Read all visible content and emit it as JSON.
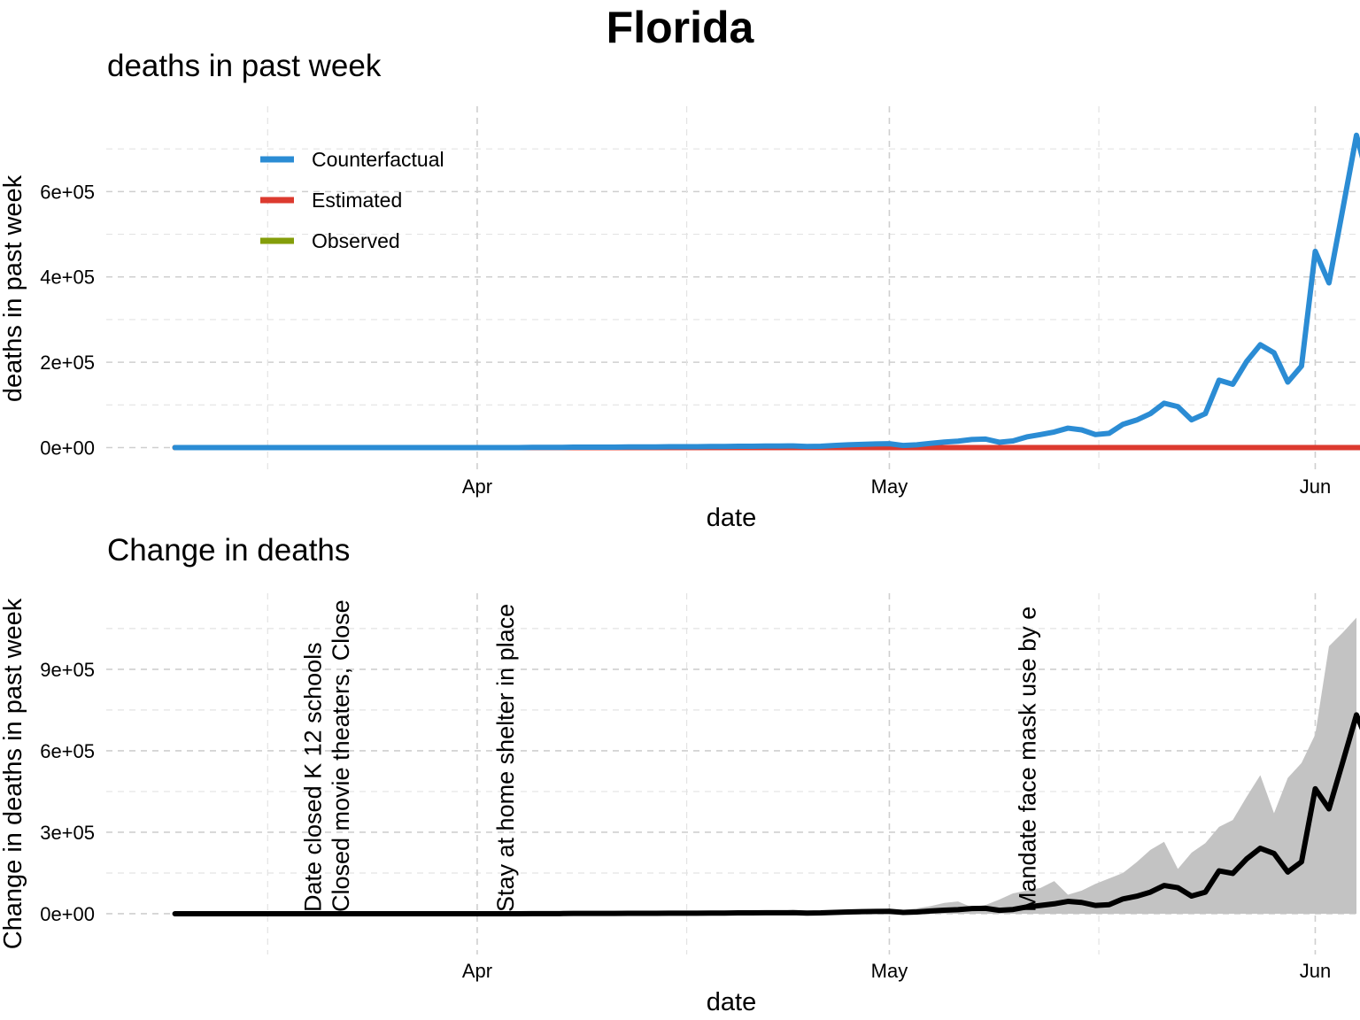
{
  "title": "Florida",
  "colors": {
    "counterfactual": "#2b8cd4",
    "estimated": "#dc3a2f",
    "observed": "#849e0a",
    "change_line": "#000000",
    "band": "#c3c3c3",
    "grid": "#cfcfcf"
  },
  "chart_data": [
    {
      "type": "line",
      "title": "deaths in past week",
      "xlabel": "date",
      "ylabel": "deaths in past week",
      "x_axis": {
        "type": "date",
        "range": [
          "2020-03-05",
          "2020-06-04"
        ],
        "ticks": [
          "2020-04-01",
          "2020-05-01",
          "2020-06-01"
        ],
        "tick_labels": [
          "Apr",
          "May",
          "Jun"
        ]
      },
      "y_axis": {
        "range": [
          -55000,
          800000
        ],
        "ticks": [
          0,
          200000,
          400000,
          600000
        ],
        "tick_labels": [
          "0e+00",
          "2e+05",
          "4e+05",
          "6e+05"
        ]
      },
      "grid": true,
      "legend": {
        "position": "top-left",
        "entries": [
          "Counterfactual",
          "Estimated",
          "Observed"
        ]
      },
      "x_start": "2020-03-10",
      "series": [
        {
          "name": "Counterfactual",
          "color": "#2b8cd4",
          "values": [
            0,
            0,
            0,
            0,
            0,
            0,
            0,
            0,
            0,
            0,
            0,
            0,
            0,
            0,
            0,
            0,
            0,
            0,
            0,
            0,
            0,
            0,
            0,
            0,
            0,
            0,
            500,
            500,
            500,
            1000,
            1000,
            1000,
            1000,
            1500,
            1500,
            1500,
            2000,
            2000,
            2000,
            2500,
            2500,
            3000,
            3000,
            3500,
            3500,
            4000,
            2500,
            3000,
            5000,
            6500,
            7500,
            8500,
            9000,
            5000,
            6500,
            10000,
            13000,
            15000,
            19000,
            20000,
            12500,
            15500,
            25000,
            30500,
            36500,
            45500,
            41500,
            30500,
            33500,
            54500,
            64500,
            79500,
            104000,
            96000,
            65000,
            79500,
            158000,
            148500,
            201500,
            241000,
            222000,
            153500,
            191000,
            460000,
            386000,
            558000,
            732000,
            612000
          ]
        },
        {
          "name": "Estimated",
          "color": "#dc3a2f",
          "values": [
            0,
            0,
            0,
            0,
            0,
            0,
            0,
            0,
            0,
            0,
            0,
            0,
            0,
            0,
            0,
            0,
            0,
            0,
            0,
            0,
            0,
            0,
            0,
            0,
            0,
            0,
            0,
            0,
            0,
            0,
            0,
            0,
            0,
            0,
            0,
            0,
            0,
            0,
            0,
            0,
            0,
            0,
            0,
            0,
            0,
            0,
            0,
            0,
            0,
            0,
            0,
            0,
            0,
            0,
            0,
            0,
            0,
            0,
            0,
            0,
            0,
            0,
            0,
            0,
            0,
            0,
            0,
            0,
            0,
            0,
            0,
            0,
            0,
            0,
            0,
            0,
            0,
            0,
            0,
            0,
            0,
            0,
            0,
            0,
            0,
            0,
            0,
            0
          ]
        },
        {
          "name": "Observed",
          "color": "#849e0a",
          "values": [
            0,
            0,
            0,
            0,
            0,
            0,
            0,
            0,
            0,
            0,
            0,
            0,
            0,
            0,
            0,
            0,
            0,
            0,
            0,
            0,
            0,
            0,
            0,
            0,
            0,
            0,
            0,
            0,
            0,
            0,
            0,
            0,
            0,
            0,
            0,
            0,
            0,
            0,
            0,
            0,
            0,
            0,
            0,
            0,
            0,
            0,
            0,
            0,
            0,
            0,
            0,
            0,
            0,
            0,
            0,
            0,
            0,
            0,
            0,
            0,
            0,
            0,
            0,
            0,
            0,
            0,
            0,
            0,
            0,
            0,
            0,
            0,
            0,
            0,
            0,
            0,
            0,
            0,
            0,
            0,
            0,
            0,
            0,
            0,
            0,
            0,
            0,
            0
          ]
        }
      ]
    },
    {
      "type": "area",
      "title": "Change in deaths",
      "xlabel": "date",
      "ylabel": "Change in deaths in past week",
      "x_axis": {
        "type": "date",
        "range": [
          "2020-03-05",
          "2020-06-04"
        ],
        "ticks": [
          "2020-04-01",
          "2020-05-01",
          "2020-06-01"
        ],
        "tick_labels": [
          "Apr",
          "May",
          "Jun"
        ]
      },
      "y_axis": {
        "range": [
          -150000,
          1180000
        ],
        "ticks": [
          0,
          300000,
          600000,
          900000
        ],
        "tick_labels": [
          "0e+00",
          "3e+05",
          "6e+05",
          "9e+05"
        ]
      },
      "grid": true,
      "x_start": "2020-03-10",
      "series": [
        {
          "name": "",
          "color": "#000000",
          "values": [
            0,
            0,
            0,
            0,
            0,
            0,
            0,
            0,
            0,
            0,
            0,
            0,
            0,
            0,
            0,
            0,
            0,
            0,
            0,
            0,
            0,
            0,
            0,
            0,
            0,
            0,
            500,
            500,
            500,
            1000,
            1000,
            1000,
            1000,
            1500,
            1500,
            1500,
            2000,
            2000,
            2000,
            2500,
            2500,
            3000,
            3000,
            3500,
            3500,
            4000,
            2500,
            3000,
            5000,
            6500,
            7500,
            8500,
            9000,
            5000,
            6500,
            10000,
            13000,
            15000,
            19000,
            20000,
            12500,
            15500,
            25000,
            30500,
            36500,
            45500,
            41500,
            30500,
            33500,
            54500,
            64500,
            79500,
            104000,
            96000,
            65000,
            79500,
            158000,
            148500,
            201500,
            241000,
            222000,
            153500,
            191000,
            460000,
            386000,
            558000,
            732000,
            612000
          ]
        }
      ],
      "band": {
        "x_start": "2020-05-01",
        "upper": [
          4000,
          14000,
          20000,
          28000,
          40000,
          45000,
          24000,
          32000,
          52000,
          75000,
          85000,
          95000,
          120000,
          70000,
          85000,
          110000,
          130000,
          150000,
          190000,
          235000,
          265000,
          165000,
          225000,
          260000,
          320000,
          345000,
          430000,
          510000,
          370000,
          500000,
          555000,
          660000,
          985000,
          1035000,
          1090000
        ],
        "lower": [
          0,
          0,
          0,
          0,
          0,
          0,
          0,
          0,
          0,
          0,
          0,
          0,
          0,
          0,
          0,
          0,
          0,
          0,
          0,
          0,
          0,
          0,
          0,
          0,
          0,
          0,
          0,
          0,
          0,
          0,
          0,
          0,
          0,
          0,
          0
        ]
      },
      "annotations": [
        {
          "date": "2020-03-20",
          "text": "Date closed K 12 schools"
        },
        {
          "date": "2020-03-22",
          "text": "Closed movie theaters, Close"
        },
        {
          "date": "2020-04-03",
          "text": "Stay at home  shelter in place"
        },
        {
          "date": "2020-05-11",
          "text": "Mandate face mask use by e"
        }
      ]
    }
  ]
}
